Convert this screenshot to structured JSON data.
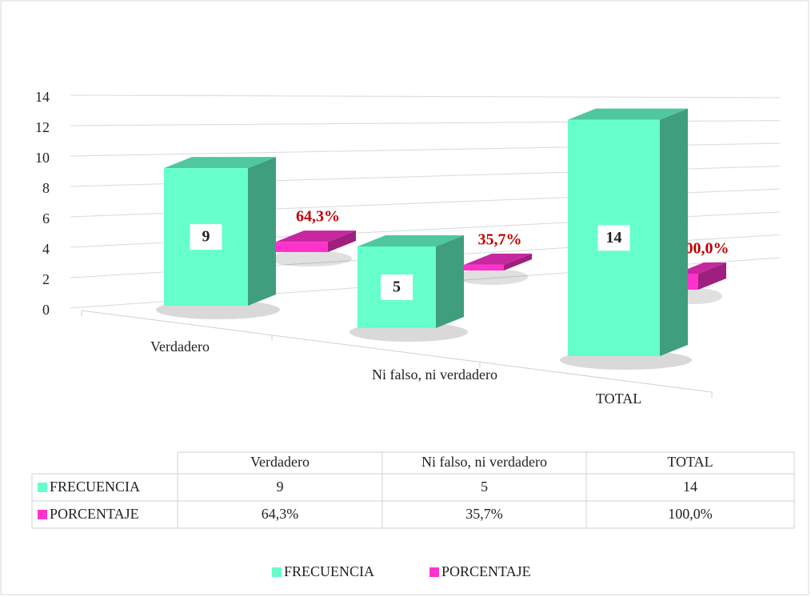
{
  "chart_data": {
    "type": "bar3d",
    "categories": [
      "Verdadero",
      "Ni falso, ni verdadero",
      "TOTAL"
    ],
    "series": [
      {
        "name": "FRECUENCIA",
        "color": "#66ffcc",
        "values": [
          9,
          5,
          14
        ]
      },
      {
        "name": "PORCENTAJE",
        "color": "#ff33cc",
        "values": [
          0.643,
          0.357,
          1
        ],
        "value_labels": [
          "64,3%",
          "35,7%",
          "100,0%"
        ]
      }
    ],
    "ylim": [
      0,
      14
    ],
    "yticks": [
      0,
      2,
      4,
      6,
      8,
      10,
      12,
      14
    ],
    "grid": true,
    "legend": "bottom",
    "data_table": true
  }
}
